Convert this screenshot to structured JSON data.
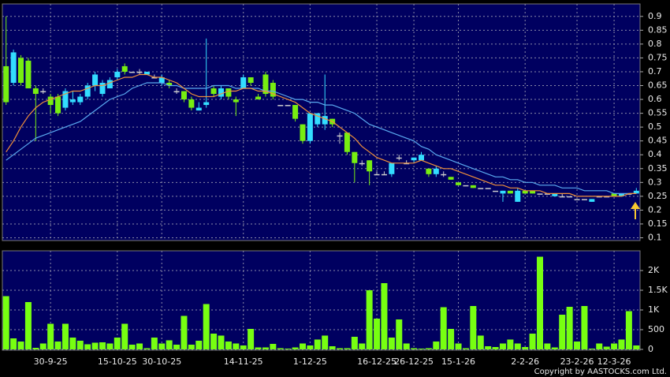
{
  "chart_data": [
    {
      "type": "candlestick",
      "categories": [
        null,
        null,
        null,
        null,
        null,
        null,
        "30-9-25",
        null,
        null,
        null,
        null,
        null,
        null,
        null,
        null,
        "15-10-25",
        null,
        null,
        null,
        null,
        null,
        "30-10-25",
        null,
        null,
        null,
        null,
        null,
        null,
        null,
        null,
        null,
        null,
        "14-11-25",
        null,
        null,
        null,
        null,
        null,
        null,
        null,
        null,
        "1-12-25",
        null,
        null,
        null,
        null,
        null,
        null,
        null,
        null,
        "16-12-25",
        null,
        null,
        null,
        null,
        "26-12-25",
        null,
        null,
        null,
        null,
        null,
        "15-1-26",
        null,
        null,
        null,
        null,
        null,
        null,
        null,
        null,
        "2-2-26",
        null,
        null,
        null,
        null,
        null,
        null,
        "23-2-26",
        null,
        null,
        null,
        null,
        "12-3-26",
        null,
        null,
        null
      ],
      "open": [
        0.72,
        0.66,
        0.75,
        0.74,
        0.64,
        0.63,
        0.61,
        0.61,
        0.57,
        0.59,
        0.59,
        0.61,
        0.65,
        0.62,
        0.64,
        0.68,
        0.72,
        0.7,
        0.7,
        0.69,
        0.68,
        0.66,
        0.66,
        0.63,
        0.63,
        0.6,
        0.56,
        0.58,
        0.64,
        0.61,
        0.64,
        0.6,
        0.64,
        0.68,
        0.61,
        0.69,
        0.66,
        0.58,
        0.58,
        0.58,
        0.51,
        0.45,
        0.51,
        0.51,
        0.53,
        0.47,
        0.48,
        0.41,
        0.37,
        0.38,
        0.33,
        0.33,
        0.33,
        0.39,
        0.37,
        0.38,
        0.38,
        0.35,
        0.33,
        0.33,
        0.32,
        0.3,
        0.29,
        0.29,
        0.28,
        0.28,
        0.27,
        0.26,
        0.27,
        0.23,
        0.27,
        0.27,
        0.26,
        0.26,
        0.25,
        0.25,
        0.25,
        0.24,
        0.24,
        0.23,
        0.25,
        0.25,
        0.26,
        0.25,
        0.26,
        0.26
      ],
      "high": [
        0.9,
        0.78,
        0.76,
        0.75,
        0.65,
        0.64,
        0.62,
        0.62,
        0.64,
        0.63,
        0.62,
        0.66,
        0.7,
        0.67,
        0.68,
        0.71,
        0.73,
        0.7,
        0.71,
        0.7,
        0.69,
        0.69,
        0.67,
        0.64,
        0.63,
        0.61,
        0.59,
        0.82,
        0.65,
        0.65,
        0.64,
        0.61,
        0.69,
        0.68,
        0.62,
        0.7,
        0.67,
        0.58,
        0.58,
        0.58,
        0.51,
        0.55,
        0.55,
        0.69,
        0.53,
        0.48,
        0.48,
        0.41,
        0.38,
        0.38,
        0.34,
        0.34,
        0.37,
        0.4,
        0.38,
        0.39,
        0.41,
        0.35,
        0.36,
        0.34,
        0.32,
        0.3,
        0.29,
        0.29,
        0.28,
        0.28,
        0.27,
        0.27,
        0.27,
        0.28,
        0.27,
        0.27,
        0.26,
        0.26,
        0.26,
        0.26,
        0.25,
        0.24,
        0.24,
        0.24,
        0.25,
        0.25,
        0.26,
        0.26,
        0.26,
        0.28
      ],
      "low": [
        0.58,
        0.65,
        0.65,
        0.64,
        0.45,
        0.62,
        0.55,
        0.54,
        0.56,
        0.58,
        0.58,
        0.6,
        0.63,
        0.61,
        0.64,
        0.67,
        0.69,
        0.7,
        0.69,
        0.69,
        0.68,
        0.65,
        0.64,
        0.62,
        0.59,
        0.56,
        0.56,
        0.57,
        0.61,
        0.6,
        0.6,
        0.54,
        0.64,
        0.65,
        0.6,
        0.61,
        0.6,
        0.58,
        0.58,
        0.52,
        0.44,
        0.44,
        0.5,
        0.49,
        0.5,
        0.44,
        0.4,
        0.3,
        0.36,
        0.29,
        0.33,
        0.33,
        0.32,
        0.38,
        0.37,
        0.37,
        0.38,
        0.32,
        0.32,
        0.32,
        0.31,
        0.29,
        0.29,
        0.28,
        0.28,
        0.28,
        0.27,
        0.23,
        0.26,
        0.23,
        0.26,
        0.26,
        0.26,
        0.26,
        0.25,
        0.25,
        0.25,
        0.24,
        0.24,
        0.23,
        0.25,
        0.25,
        0.25,
        0.25,
        0.26,
        0.26
      ],
      "close": [
        0.59,
        0.77,
        0.66,
        0.64,
        0.62,
        0.63,
        0.58,
        0.55,
        0.63,
        0.6,
        0.61,
        0.65,
        0.69,
        0.66,
        0.67,
        0.7,
        0.7,
        0.7,
        0.7,
        0.7,
        0.68,
        0.68,
        0.65,
        0.63,
        0.6,
        0.57,
        0.57,
        0.59,
        0.62,
        0.64,
        0.61,
        0.59,
        0.68,
        0.66,
        0.6,
        0.62,
        0.61,
        0.58,
        0.58,
        0.53,
        0.45,
        0.55,
        0.55,
        0.54,
        0.51,
        0.47,
        0.41,
        0.37,
        0.37,
        0.34,
        0.33,
        0.33,
        0.37,
        0.39,
        0.37,
        0.39,
        0.4,
        0.33,
        0.35,
        0.33,
        0.31,
        0.29,
        0.29,
        0.28,
        0.28,
        0.28,
        0.27,
        0.27,
        0.26,
        0.27,
        0.26,
        0.26,
        0.26,
        0.26,
        0.26,
        0.25,
        0.25,
        0.24,
        0.24,
        0.24,
        0.25,
        0.25,
        0.25,
        0.26,
        0.26,
        0.27
      ],
      "up_color": "#33ddff",
      "down_color": "#77ee11",
      "flat_color": "#cccccc",
      "series": [
        {
          "color": "#5aaaf0",
          "values": [
            0.38,
            0.4,
            0.42,
            0.44,
            0.46,
            0.47,
            0.48,
            0.49,
            0.5,
            0.51,
            0.52,
            0.54,
            0.56,
            0.58,
            0.6,
            0.61,
            0.62,
            0.64,
            0.65,
            0.66,
            0.66,
            0.66,
            0.65,
            0.65,
            0.64,
            0.64,
            0.64,
            0.64,
            0.65,
            0.65,
            0.65,
            0.64,
            0.64,
            0.64,
            0.64,
            0.63,
            0.63,
            0.62,
            0.61,
            0.6,
            0.6,
            0.59,
            0.59,
            0.58,
            0.58,
            0.57,
            0.56,
            0.55,
            0.53,
            0.51,
            0.5,
            0.49,
            0.48,
            0.47,
            0.46,
            0.45,
            0.43,
            0.42,
            0.4,
            0.39,
            0.38,
            0.37,
            0.36,
            0.35,
            0.34,
            0.33,
            0.32,
            0.32,
            0.31,
            0.31,
            0.3,
            0.3,
            0.29,
            0.29,
            0.29,
            0.28,
            0.28,
            0.28,
            0.27,
            0.27,
            0.27,
            0.27,
            0.26,
            0.26,
            0.26,
            0.26
          ]
        },
        {
          "color": "#f0903a",
          "values": [
            0.41,
            0.45,
            0.5,
            0.54,
            0.57,
            0.59,
            0.6,
            0.61,
            0.62,
            0.63,
            0.63,
            0.64,
            0.65,
            0.65,
            0.66,
            0.67,
            0.68,
            0.68,
            0.69,
            0.69,
            0.68,
            0.68,
            0.67,
            0.66,
            0.64,
            0.62,
            0.61,
            0.61,
            0.61,
            0.62,
            0.63,
            0.63,
            0.64,
            0.64,
            0.63,
            0.63,
            0.62,
            0.61,
            0.6,
            0.59,
            0.57,
            0.55,
            0.54,
            0.53,
            0.52,
            0.5,
            0.48,
            0.46,
            0.43,
            0.41,
            0.39,
            0.38,
            0.37,
            0.37,
            0.37,
            0.37,
            0.38,
            0.37,
            0.36,
            0.35,
            0.35,
            0.34,
            0.33,
            0.32,
            0.31,
            0.3,
            0.29,
            0.29,
            0.28,
            0.28,
            0.27,
            0.27,
            0.27,
            0.26,
            0.26,
            0.26,
            0.26,
            0.25,
            0.25,
            0.25,
            0.25,
            0.25,
            0.25,
            0.25,
            0.26,
            0.26
          ]
        }
      ],
      "ylim": [
        0.09,
        0.945
      ],
      "yticks": [
        0.1,
        0.15,
        0.2,
        0.25,
        0.3,
        0.35,
        0.4,
        0.45,
        0.5,
        0.55,
        0.6,
        0.65,
        0.7,
        0.75,
        0.8,
        0.85,
        0.9
      ],
      "grid": true
    },
    {
      "type": "bar",
      "color": "#77ff11",
      "values": [
        1350,
        280,
        200,
        1200,
        40,
        150,
        650,
        200,
        650,
        300,
        220,
        130,
        170,
        180,
        150,
        300,
        650,
        120,
        150,
        30,
        300,
        150,
        230,
        120,
        850,
        120,
        220,
        1150,
        400,
        350,
        200,
        150,
        100,
        520,
        50,
        50,
        140,
        30,
        20,
        50,
        150,
        100,
        250,
        350,
        80,
        30,
        30,
        320,
        150,
        1500,
        780,
        1680,
        300,
        760,
        150,
        30,
        20,
        30,
        200,
        1070,
        520,
        150,
        30,
        1100,
        350,
        80,
        60,
        150,
        250,
        150,
        60,
        400,
        2350,
        150,
        50,
        880,
        1080,
        200,
        1100,
        20,
        150,
        70,
        150,
        250,
        970,
        100
      ],
      "ylim": [
        -20,
        2500
      ],
      "yticks": [
        0,
        500,
        {
          "value": 1000,
          "label": "1K"
        },
        {
          "value": 1500,
          "label": "1.5K"
        },
        {
          "value": 2000,
          "label": "2K"
        }
      ],
      "grid": true
    }
  ],
  "copyright": "Copyright by AASTOCKS.com Ltd."
}
